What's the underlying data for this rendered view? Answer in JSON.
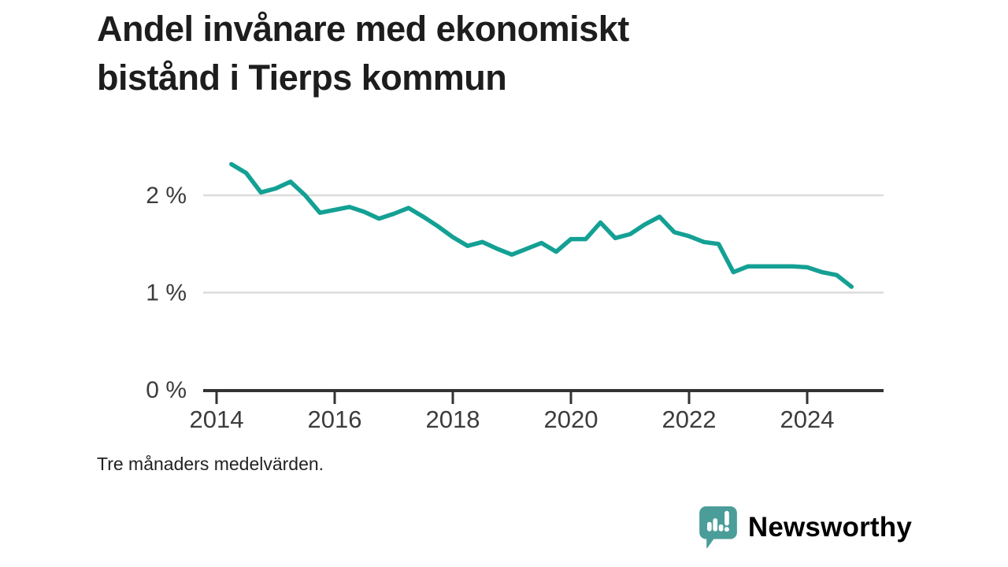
{
  "header": {
    "title": "Andel invånare med ekonomiskt bistånd i Tierps kommun",
    "title_lines": [
      "Andel invånare med ekonomiskt",
      "bistånd i Tierps kommun"
    ]
  },
  "footnote": "Tre månaders medelvärden.",
  "branding": {
    "name": "Newsworthy",
    "logo_icon": "speech-bubble-bar-chart-exclamation",
    "color": "#4a9d98"
  },
  "colors": {
    "line": "#14a094",
    "grid": "#dcdcdc",
    "axis": "#333333",
    "tick_text": "#3c3c3c",
    "title_text": "#1d1d1d"
  },
  "chart_data": {
    "type": "line",
    "title": "Andel invånare med ekonomiskt bistånd i Tierps kommun",
    "xlabel": "",
    "ylabel": "",
    "grid": "horizontal-only",
    "legend": "none",
    "xlim": [
      2013.78,
      2025.3
    ],
    "ylim": [
      0,
      2.4
    ],
    "x_ticks": [
      {
        "label": "2014",
        "year": 2014
      },
      {
        "label": "2016",
        "year": 2016
      },
      {
        "label": "2018",
        "year": 2018
      },
      {
        "label": "2020",
        "year": 2020
      },
      {
        "label": "2022",
        "year": 2022
      },
      {
        "label": "2024",
        "year": 2024
      }
    ],
    "y_ticks": [
      {
        "label": "2 %",
        "value": 2
      },
      {
        "label": "1 %",
        "value": 1
      },
      {
        "label": "0 %",
        "value": 0
      }
    ],
    "unit": "%",
    "x": [
      2014.25,
      2014.5,
      2014.75,
      2015,
      2015.25,
      2015.5,
      2015.75,
      2016,
      2016.25,
      2016.5,
      2016.75,
      2017,
      2017.25,
      2017.5,
      2017.75,
      2018,
      2018.25,
      2018.5,
      2018.75,
      2019,
      2019.25,
      2019.5,
      2019.75,
      2020,
      2020.25,
      2020.5,
      2020.75,
      2021,
      2021.25,
      2021.5,
      2021.75,
      2022,
      2022.25,
      2022.5,
      2022.75,
      2023,
      2023.25,
      2023.5,
      2023.75,
      2024,
      2024.25,
      2024.5,
      2024.75
    ],
    "values": [
      2.32,
      2.23,
      2.03,
      2.07,
      2.14,
      2.0,
      1.82,
      1.85,
      1.88,
      1.83,
      1.76,
      1.81,
      1.87,
      1.78,
      1.68,
      1.57,
      1.48,
      1.52,
      1.45,
      1.39,
      1.45,
      1.51,
      1.42,
      1.55,
      1.55,
      1.72,
      1.56,
      1.6,
      1.7,
      1.78,
      1.62,
      1.58,
      1.52,
      1.5,
      1.21,
      1.27,
      1.27,
      1.27,
      1.27,
      1.26,
      1.21,
      1.18,
      1.06
    ]
  }
}
